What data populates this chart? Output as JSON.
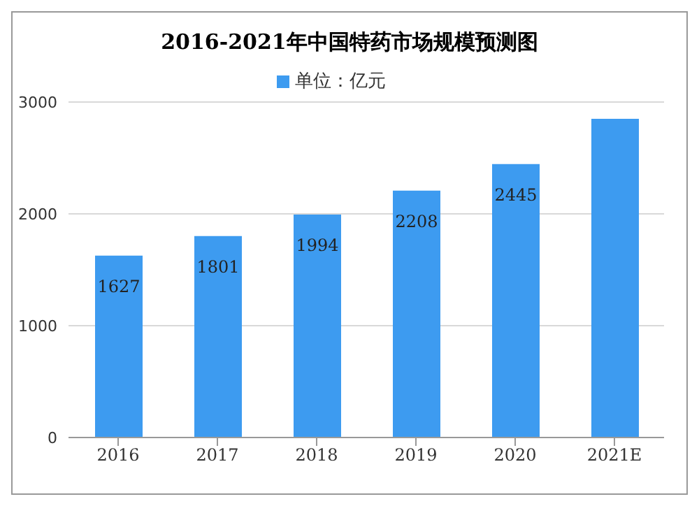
{
  "chart_data": {
    "type": "bar",
    "title": "2016-2021年中国特药市场规模预测图",
    "categories": [
      "2016",
      "2017",
      "2018",
      "2019",
      "2020",
      "2021E"
    ],
    "series": [
      {
        "name": "单位：亿元",
        "color": "#3d9bf0",
        "values": [
          1627,
          1801,
          1994,
          2208,
          2445,
          2850
        ],
        "value_labels": [
          "1627",
          "1801",
          "1994",
          "2208",
          "2445",
          null
        ]
      }
    ],
    "ylim": [
      0,
      3000
    ],
    "yticks": [
      0,
      1000,
      2000,
      3000
    ],
    "grid": "y",
    "legend": "top"
  }
}
